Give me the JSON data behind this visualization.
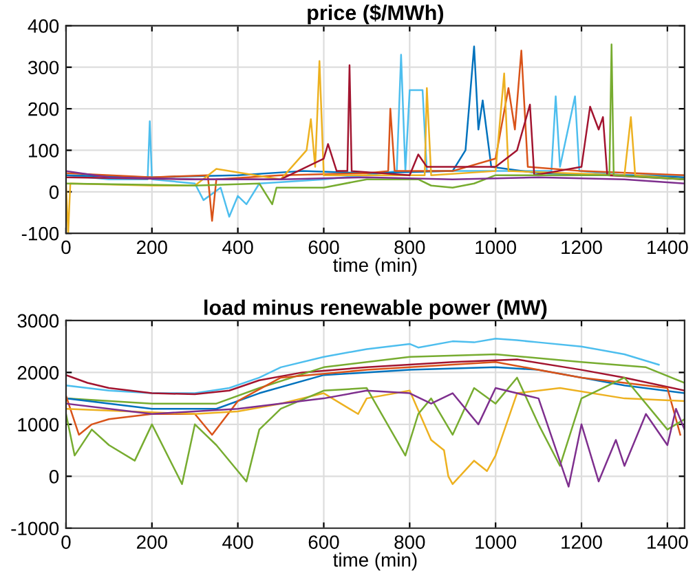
{
  "chart_data": [
    {
      "type": "line",
      "title": "price ($/MWh)",
      "xlabel": "time (min)",
      "xlim": [
        0,
        1440
      ],
      "xticks": [
        0,
        200,
        400,
        600,
        800,
        1000,
        1200,
        1400
      ],
      "ylim": [
        -100,
        400
      ],
      "yticks": [
        -100,
        0,
        100,
        200,
        300,
        400
      ],
      "grid": true,
      "legend": false,
      "marker": "none",
      "line_style": "solid",
      "series": [
        {
          "color": "#4dbeee",
          "x": [
            0,
            100,
            190,
            195,
            200,
            300,
            320,
            360,
            380,
            400,
            420,
            450,
            600,
            700,
            770,
            780,
            790,
            800,
            830,
            840,
            1000,
            1130,
            1140,
            1150,
            1185,
            1195,
            1300,
            1440
          ],
          "values": [
            40,
            30,
            30,
            170,
            30,
            20,
            -20,
            10,
            -60,
            -10,
            -30,
            20,
            30,
            40,
            50,
            330,
            50,
            245,
            245,
            50,
            50,
            50,
            230,
            60,
            230,
            50,
            40,
            40
          ]
        },
        {
          "color": "#0072bd",
          "x": [
            0,
            200,
            400,
            550,
            700,
            900,
            930,
            950,
            960,
            970,
            990,
            1100,
            1300,
            1440
          ],
          "values": [
            40,
            35,
            40,
            50,
            45,
            50,
            100,
            350,
            150,
            220,
            60,
            45,
            40,
            35
          ]
        },
        {
          "color": "#d95319",
          "x": [
            0,
            200,
            330,
            340,
            350,
            500,
            700,
            750,
            755,
            765,
            900,
            1000,
            1030,
            1045,
            1060,
            1075,
            1200,
            1440
          ],
          "values": [
            45,
            35,
            40,
            -70,
            30,
            40,
            45,
            50,
            200,
            50,
            50,
            80,
            250,
            150,
            340,
            60,
            50,
            40
          ]
        },
        {
          "color": "#edb120",
          "x": [
            0,
            5,
            10,
            200,
            300,
            350,
            500,
            560,
            570,
            580,
            590,
            600,
            800,
            835,
            840,
            850,
            1000,
            1020,
            1030,
            1300,
            1315,
            1325,
            1440
          ],
          "values": [
            20,
            -100,
            20,
            15,
            15,
            55,
            30,
            100,
            175,
            60,
            315,
            40,
            40,
            40,
            250,
            40,
            50,
            285,
            50,
            40,
            180,
            40,
            30
          ]
        },
        {
          "color": "#a2142f",
          "x": [
            0,
            300,
            500,
            600,
            610,
            630,
            655,
            660,
            665,
            800,
            820,
            840,
            1000,
            1050,
            1080,
            1090,
            1200,
            1220,
            1240,
            1250,
            1260,
            1440
          ],
          "values": [
            35,
            30,
            30,
            80,
            115,
            50,
            50,
            305,
            50,
            40,
            90,
            60,
            60,
            100,
            210,
            40,
            60,
            205,
            150,
            180,
            40,
            30
          ]
        },
        {
          "color": "#77ac30",
          "x": [
            0,
            300,
            450,
            480,
            490,
            600,
            700,
            820,
            850,
            900,
            950,
            1000,
            1200,
            1265,
            1270,
            1275,
            1440
          ],
          "values": [
            20,
            15,
            20,
            -30,
            10,
            10,
            30,
            30,
            15,
            10,
            20,
            40,
            40,
            40,
            355,
            40,
            30
          ]
        },
        {
          "color": "#7e2f8e",
          "x": [
            0,
            100,
            300,
            500,
            700,
            900,
            1100,
            1300,
            1440
          ],
          "values": [
            50,
            35,
            30,
            30,
            35,
            30,
            35,
            30,
            20
          ]
        }
      ]
    },
    {
      "type": "line",
      "title": "load minus renewable power (MW)",
      "xlabel": "time (min)",
      "xlim": [
        0,
        1440
      ],
      "xticks": [
        0,
        200,
        400,
        600,
        800,
        1000,
        1200,
        1400
      ],
      "ylim": [
        -1000,
        3000
      ],
      "yticks": [
        -1000,
        0,
        1000,
        2000,
        3000
      ],
      "grid": true,
      "legend": false,
      "marker": "none",
      "line_style": "solid",
      "series": [
        {
          "color": "#4dbeee",
          "x": [
            0,
            100,
            200,
            300,
            380,
            450,
            500,
            600,
            700,
            800,
            820,
            900,
            950,
            1000,
            1050,
            1100,
            1200,
            1300,
            1380
          ],
          "values": [
            1750,
            1650,
            1600,
            1600,
            1700,
            1900,
            2100,
            2300,
            2450,
            2550,
            2480,
            2600,
            2580,
            2650,
            2620,
            2580,
            2500,
            2350,
            2150
          ]
        },
        {
          "color": "#a2142f",
          "x": [
            0,
            50,
            100,
            200,
            300,
            380,
            450,
            550,
            700,
            900,
            1050,
            1200,
            1300,
            1440
          ],
          "values": [
            1950,
            1800,
            1700,
            1600,
            1580,
            1650,
            1850,
            2000,
            2100,
            2200,
            2250,
            2050,
            1900,
            1650
          ]
        },
        {
          "color": "#77ac30",
          "x": [
            0,
            200,
            350,
            450,
            600,
            800,
            1000,
            1200,
            1350,
            1440
          ],
          "values": [
            1500,
            1400,
            1400,
            1700,
            2100,
            2300,
            2350,
            2200,
            2100,
            1800
          ]
        },
        {
          "color": "#0072bd",
          "x": [
            0,
            200,
            350,
            450,
            600,
            800,
            1000,
            1100,
            1300,
            1440
          ],
          "values": [
            1500,
            1300,
            1300,
            1600,
            1950,
            2050,
            2100,
            2050,
            1750,
            1600
          ]
        },
        {
          "color": "#d95319",
          "x": [
            0,
            30,
            60,
            100,
            200,
            300,
            340,
            400,
            500,
            700,
            1000,
            1200,
            1400,
            1430
          ],
          "values": [
            1550,
            800,
            1000,
            1100,
            1200,
            1200,
            800,
            1450,
            1900,
            2050,
            2200,
            1900,
            1700,
            800
          ]
        },
        {
          "color": "#edb120",
          "x": [
            0,
            300,
            400,
            500,
            600,
            680,
            700,
            800,
            850,
            880,
            890,
            900,
            950,
            980,
            1000,
            1050,
            1150,
            1300,
            1440
          ],
          "values": [
            1300,
            1200,
            1250,
            1400,
            1600,
            1200,
            1500,
            1650,
            700,
            500,
            0,
            -150,
            300,
            100,
            400,
            1600,
            1700,
            1500,
            1450
          ]
        },
        {
          "color": "#77ac30",
          "x": [
            0,
            20,
            60,
            100,
            160,
            200,
            270,
            300,
            350,
            400,
            420,
            450,
            500,
            600,
            700,
            790,
            820,
            850,
            900,
            950,
            1000,
            1050,
            1100,
            1150,
            1200,
            1300,
            1400,
            1440
          ],
          "values": [
            1200,
            400,
            900,
            600,
            300,
            1000,
            -150,
            1000,
            600,
            100,
            -100,
            900,
            1300,
            1650,
            1700,
            400,
            1200,
            1500,
            800,
            1700,
            1400,
            1900,
            1000,
            200,
            1500,
            1900,
            900,
            1100
          ]
        },
        {
          "color": "#7e2f8e",
          "x": [
            0,
            200,
            400,
            600,
            700,
            800,
            850,
            900,
            960,
            1000,
            1100,
            1170,
            1200,
            1240,
            1280,
            1300,
            1350,
            1400,
            1420,
            1440
          ],
          "values": [
            1400,
            1200,
            1300,
            1500,
            1650,
            1600,
            1400,
            1600,
            1000,
            1700,
            1500,
            -200,
            1000,
            -100,
            700,
            200,
            1200,
            600,
            1300,
            900
          ]
        }
      ]
    }
  ]
}
